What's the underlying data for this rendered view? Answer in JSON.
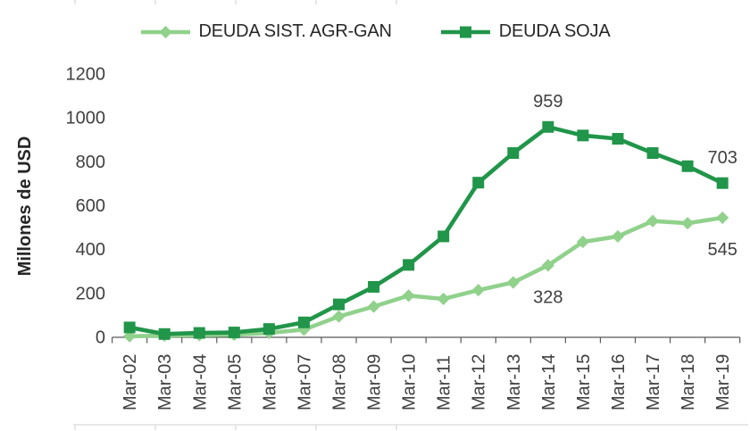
{
  "chart_data": {
    "type": "line",
    "title": "",
    "xlabel": "",
    "ylabel": "Millones de USD",
    "ylim": [
      0,
      1200
    ],
    "ytick_step": 200,
    "yticks": [
      0,
      200,
      400,
      600,
      800,
      1000,
      1200
    ],
    "grid": false,
    "legend_position": "top",
    "categories": [
      "Mar-02",
      "Mar-03",
      "Mar-04",
      "Mar-05",
      "Mar-06",
      "Mar-07",
      "Mar-08",
      "Mar-09",
      "Mar-10",
      "Mar-11",
      "Mar-12",
      "Mar-13",
      "Mar-14",
      "Mar-15",
      "Mar-16",
      "Mar-17",
      "Mar-18",
      "Mar-19"
    ],
    "series": [
      {
        "name": "DEUDA SIST. AGR-GAN",
        "color": "#90d18c",
        "marker": "diamond",
        "values": [
          5,
          8,
          10,
          12,
          20,
          35,
          95,
          140,
          190,
          175,
          215,
          250,
          328,
          435,
          460,
          530,
          520,
          545
        ]
      },
      {
        "name": "DEUDA SOJA",
        "color": "#219549",
        "marker": "square",
        "values": [
          45,
          15,
          20,
          22,
          38,
          68,
          150,
          230,
          330,
          460,
          705,
          840,
          959,
          920,
          905,
          840,
          780,
          703
        ]
      }
    ],
    "data_labels": [
      {
        "series": 1,
        "category_index": 12,
        "text": "959",
        "position": "above"
      },
      {
        "series": 1,
        "category_index": 17,
        "text": "703",
        "position": "above"
      },
      {
        "series": 0,
        "category_index": 12,
        "text": "328",
        "position": "below"
      },
      {
        "series": 0,
        "category_index": 17,
        "text": "545",
        "position": "below"
      }
    ]
  },
  "colors": {
    "axis": "#595959",
    "tick_text": "#3f3f3f",
    "data_label_text": "#404040",
    "frame_guide": "#d9d9d9"
  }
}
